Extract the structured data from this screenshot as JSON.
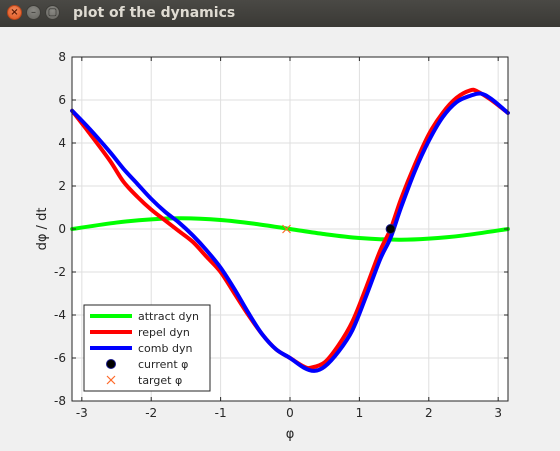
{
  "window": {
    "title": "plot of the dynamics",
    "close_glyph": "×",
    "minimize_glyph": "–",
    "maximize_glyph": "▢",
    "icons": [
      "close-icon",
      "minimize-icon",
      "maximize-icon"
    ]
  },
  "chart_data": {
    "type": "line",
    "xlabel": "φ",
    "ylabel": "dφ / dt",
    "xlim": [
      -3.1416,
      3.1416
    ],
    "ylim": [
      -8,
      8
    ],
    "xticks": [
      -3,
      -2,
      -1,
      0,
      1,
      2,
      3
    ],
    "yticks": [
      -8,
      -6,
      -4,
      -2,
      0,
      2,
      4,
      6,
      8
    ],
    "grid": true,
    "legend_position": "bottom-left",
    "series": [
      {
        "name": "attract dyn",
        "color": "#00ff00",
        "style": "line",
        "x": [
          -3.14,
          -2.5,
          -2.0,
          -1.57,
          -1.0,
          -0.5,
          0.0,
          0.5,
          1.0,
          1.57,
          2.0,
          2.5,
          3.14
        ],
        "y": [
          0.0,
          0.3,
          0.45,
          0.5,
          0.42,
          0.24,
          0.0,
          -0.24,
          -0.42,
          -0.5,
          -0.45,
          -0.3,
          0.0
        ]
      },
      {
        "name": "repel dyn",
        "color": "#ff0000",
        "style": "line",
        "x": [
          -3.14,
          -2.9,
          -2.6,
          -2.4,
          -2.2,
          -2.0,
          -1.8,
          -1.6,
          -1.4,
          -1.2,
          -1.0,
          -0.8,
          -0.6,
          -0.4,
          -0.2,
          0.0,
          0.2,
          0.3,
          0.5,
          0.7,
          0.9,
          1.1,
          1.3,
          1.45,
          1.6,
          1.8,
          2.0,
          2.2,
          2.4,
          2.6,
          2.7,
          2.9,
          3.14
        ],
        "y": [
          5.5,
          4.5,
          3.2,
          2.2,
          1.5,
          0.9,
          0.4,
          -0.1,
          -0.6,
          -1.3,
          -2.0,
          -3.0,
          -4.0,
          -4.9,
          -5.6,
          -6.0,
          -6.4,
          -6.45,
          -6.2,
          -5.4,
          -4.3,
          -2.7,
          -1.0,
          0.0,
          1.4,
          3.0,
          4.4,
          5.4,
          6.1,
          6.45,
          6.4,
          6.0,
          5.4
        ]
      },
      {
        "name": "comb dyn",
        "color": "#0000ff",
        "style": "line",
        "x": [
          -3.14,
          -2.9,
          -2.6,
          -2.4,
          -2.2,
          -2.0,
          -1.8,
          -1.6,
          -1.4,
          -1.2,
          -1.0,
          -0.8,
          -0.6,
          -0.4,
          -0.2,
          0.0,
          0.2,
          0.35,
          0.5,
          0.7,
          0.9,
          1.1,
          1.3,
          1.45,
          1.6,
          1.8,
          2.0,
          2.2,
          2.4,
          2.6,
          2.75,
          2.9,
          3.14
        ],
        "y": [
          5.5,
          4.7,
          3.6,
          2.8,
          2.1,
          1.4,
          0.8,
          0.3,
          -0.3,
          -1.0,
          -1.8,
          -2.8,
          -3.9,
          -4.9,
          -5.6,
          -6.0,
          -6.45,
          -6.6,
          -6.4,
          -5.7,
          -4.7,
          -3.1,
          -1.4,
          -0.4,
          1.0,
          2.7,
          4.1,
          5.2,
          5.9,
          6.2,
          6.3,
          6.05,
          5.4
        ]
      },
      {
        "name": "current φ",
        "color": "#000000",
        "style": "marker-circle",
        "x": [
          1.45
        ],
        "y": [
          0.0
        ]
      },
      {
        "name": "target φ",
        "color": "#ff6a2a",
        "style": "marker-x",
        "x": [
          -0.05
        ],
        "y": [
          0.0
        ]
      }
    ]
  }
}
